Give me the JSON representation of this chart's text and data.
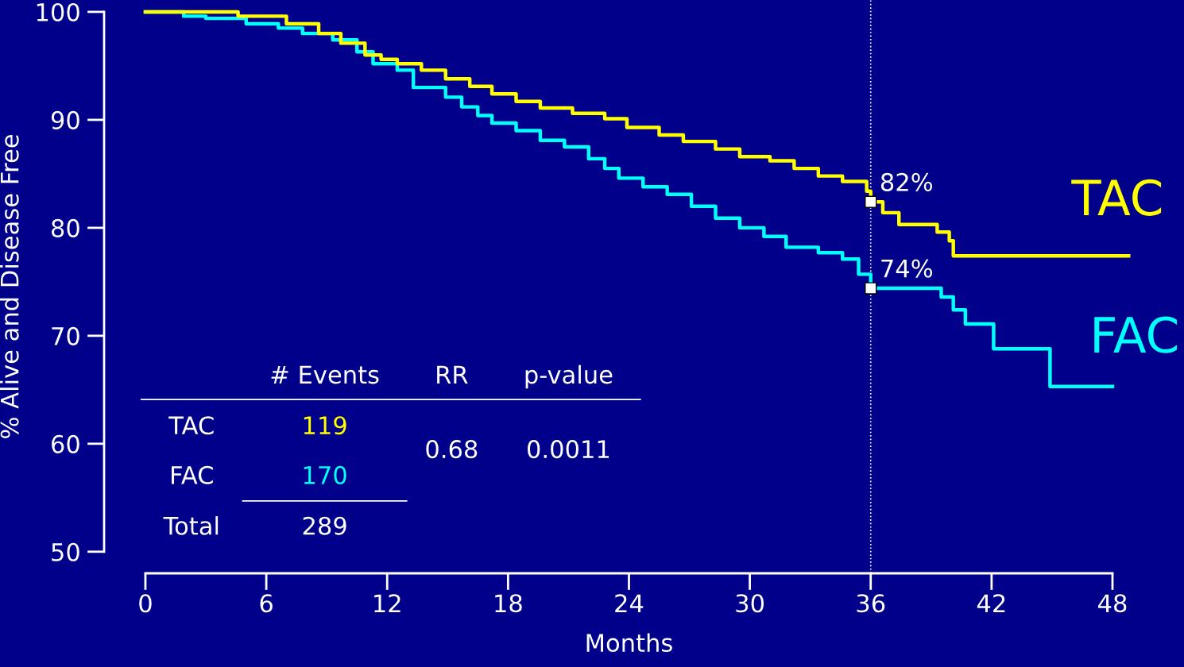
{
  "chart_data": {
    "type": "step",
    "xlabel": "Months",
    "ylabel": "% Alive and Disease Free",
    "xlim": [
      -2.05,
      51.55
    ],
    "ylim": [
      48,
      101.1
    ],
    "xticks": [
      0,
      6,
      12,
      18,
      24,
      30,
      36,
      42,
      48
    ],
    "yticks": [
      50,
      60,
      70,
      80,
      90,
      100
    ],
    "grid": false,
    "marker": "none",
    "line_style": "solid",
    "series": [
      {
        "name": "TAC",
        "color": "#ffff00",
        "x": [
          0,
          4.6,
          7,
          8.6,
          9.7,
          10.9,
          11.7,
          12.5,
          13.7,
          14.9,
          16.1,
          17.2,
          18.4,
          19.6,
          21.2,
          22.8,
          23.9,
          25.5,
          26.7,
          28.3,
          29.5,
          31,
          32.2,
          33.4,
          34.6,
          35.8,
          36,
          36.6,
          37.4,
          39.3,
          39.9,
          40.1,
          48.8
        ],
        "values": [
          100,
          99.6,
          98.9,
          98,
          97.1,
          96,
          95.6,
          95.2,
          94.6,
          93.8,
          93.1,
          92.4,
          91.7,
          91.1,
          90.6,
          90.1,
          89.3,
          88.6,
          88,
          87.3,
          86.6,
          86.2,
          85.5,
          84.8,
          84.3,
          83.4,
          82.4,
          81.4,
          80.3,
          79.6,
          78.8,
          77.4,
          77.4
        ]
      },
      {
        "name": "FAC",
        "color": "#00ffff",
        "x": [
          0,
          1.9,
          3,
          5,
          6.6,
          7.8,
          9.3,
          10.5,
          11.3,
          12.5,
          13.3,
          14.9,
          15.7,
          16.5,
          17.2,
          18.4,
          19.6,
          20.8,
          22,
          22.8,
          23.5,
          24.7,
          25.9,
          27.1,
          28.3,
          29.5,
          30.7,
          31.8,
          33.4,
          34.6,
          35.4,
          36,
          39.5,
          40.1,
          40.7,
          42.1,
          44.9,
          48
        ],
        "values": [
          100,
          99.6,
          99.4,
          98.9,
          98.5,
          98,
          97.4,
          96.3,
          95.2,
          94.6,
          93,
          92.1,
          91.2,
          90.4,
          89.7,
          89,
          88.1,
          87.5,
          86.4,
          85.5,
          84.6,
          83.8,
          83.1,
          82,
          80.9,
          80,
          79.2,
          78.2,
          77.7,
          77.1,
          75.7,
          74.4,
          73.6,
          72.4,
          71.1,
          68.8,
          65.3,
          65.3
        ]
      }
    ],
    "ref_lines": [
      {
        "axis": "x",
        "value": 36,
        "color": "#ffffff",
        "line_style": "dotted"
      }
    ],
    "annotations": [
      {
        "text": "82%",
        "x": 36,
        "y": 82.4
      },
      {
        "text": "74%",
        "x": 36,
        "y": 74.4
      },
      "# Events",
      "RR",
      "p-value",
      "TAC",
      "119",
      "FAC",
      "170",
      "Total",
      "289",
      "0.68",
      "0.0011"
    ]
  }
}
